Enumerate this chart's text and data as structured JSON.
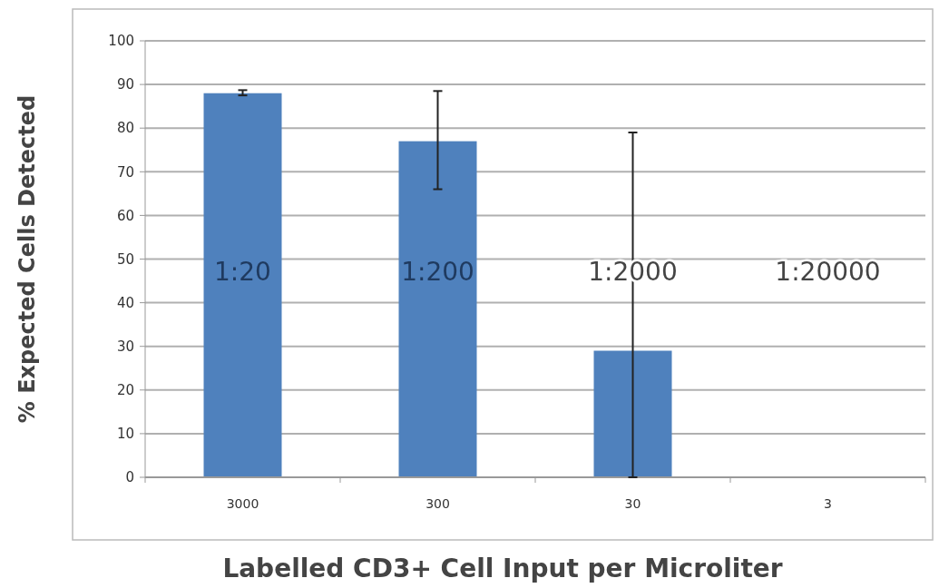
{
  "chart_data": {
    "type": "bar",
    "xlabel": "Labelled CD3+ Cell Input per Microliter",
    "ylabel": "% Expected Cells Detected",
    "categories": [
      "3000",
      "300",
      "30",
      "3"
    ],
    "values": [
      88,
      77,
      29,
      0
    ],
    "errors": [
      [
        87.5,
        88.7
      ],
      [
        66,
        88.5
      ],
      [
        0,
        79
      ],
      null
    ],
    "color": "#4f81bd",
    "ylim": [
      0,
      100
    ],
    "yticks": [
      0,
      10,
      20,
      30,
      40,
      50,
      60,
      70,
      80,
      90,
      100
    ],
    "grid": "y",
    "annotations": [
      "1:20",
      "1:200",
      "1:2000",
      "1:20000"
    ]
  }
}
